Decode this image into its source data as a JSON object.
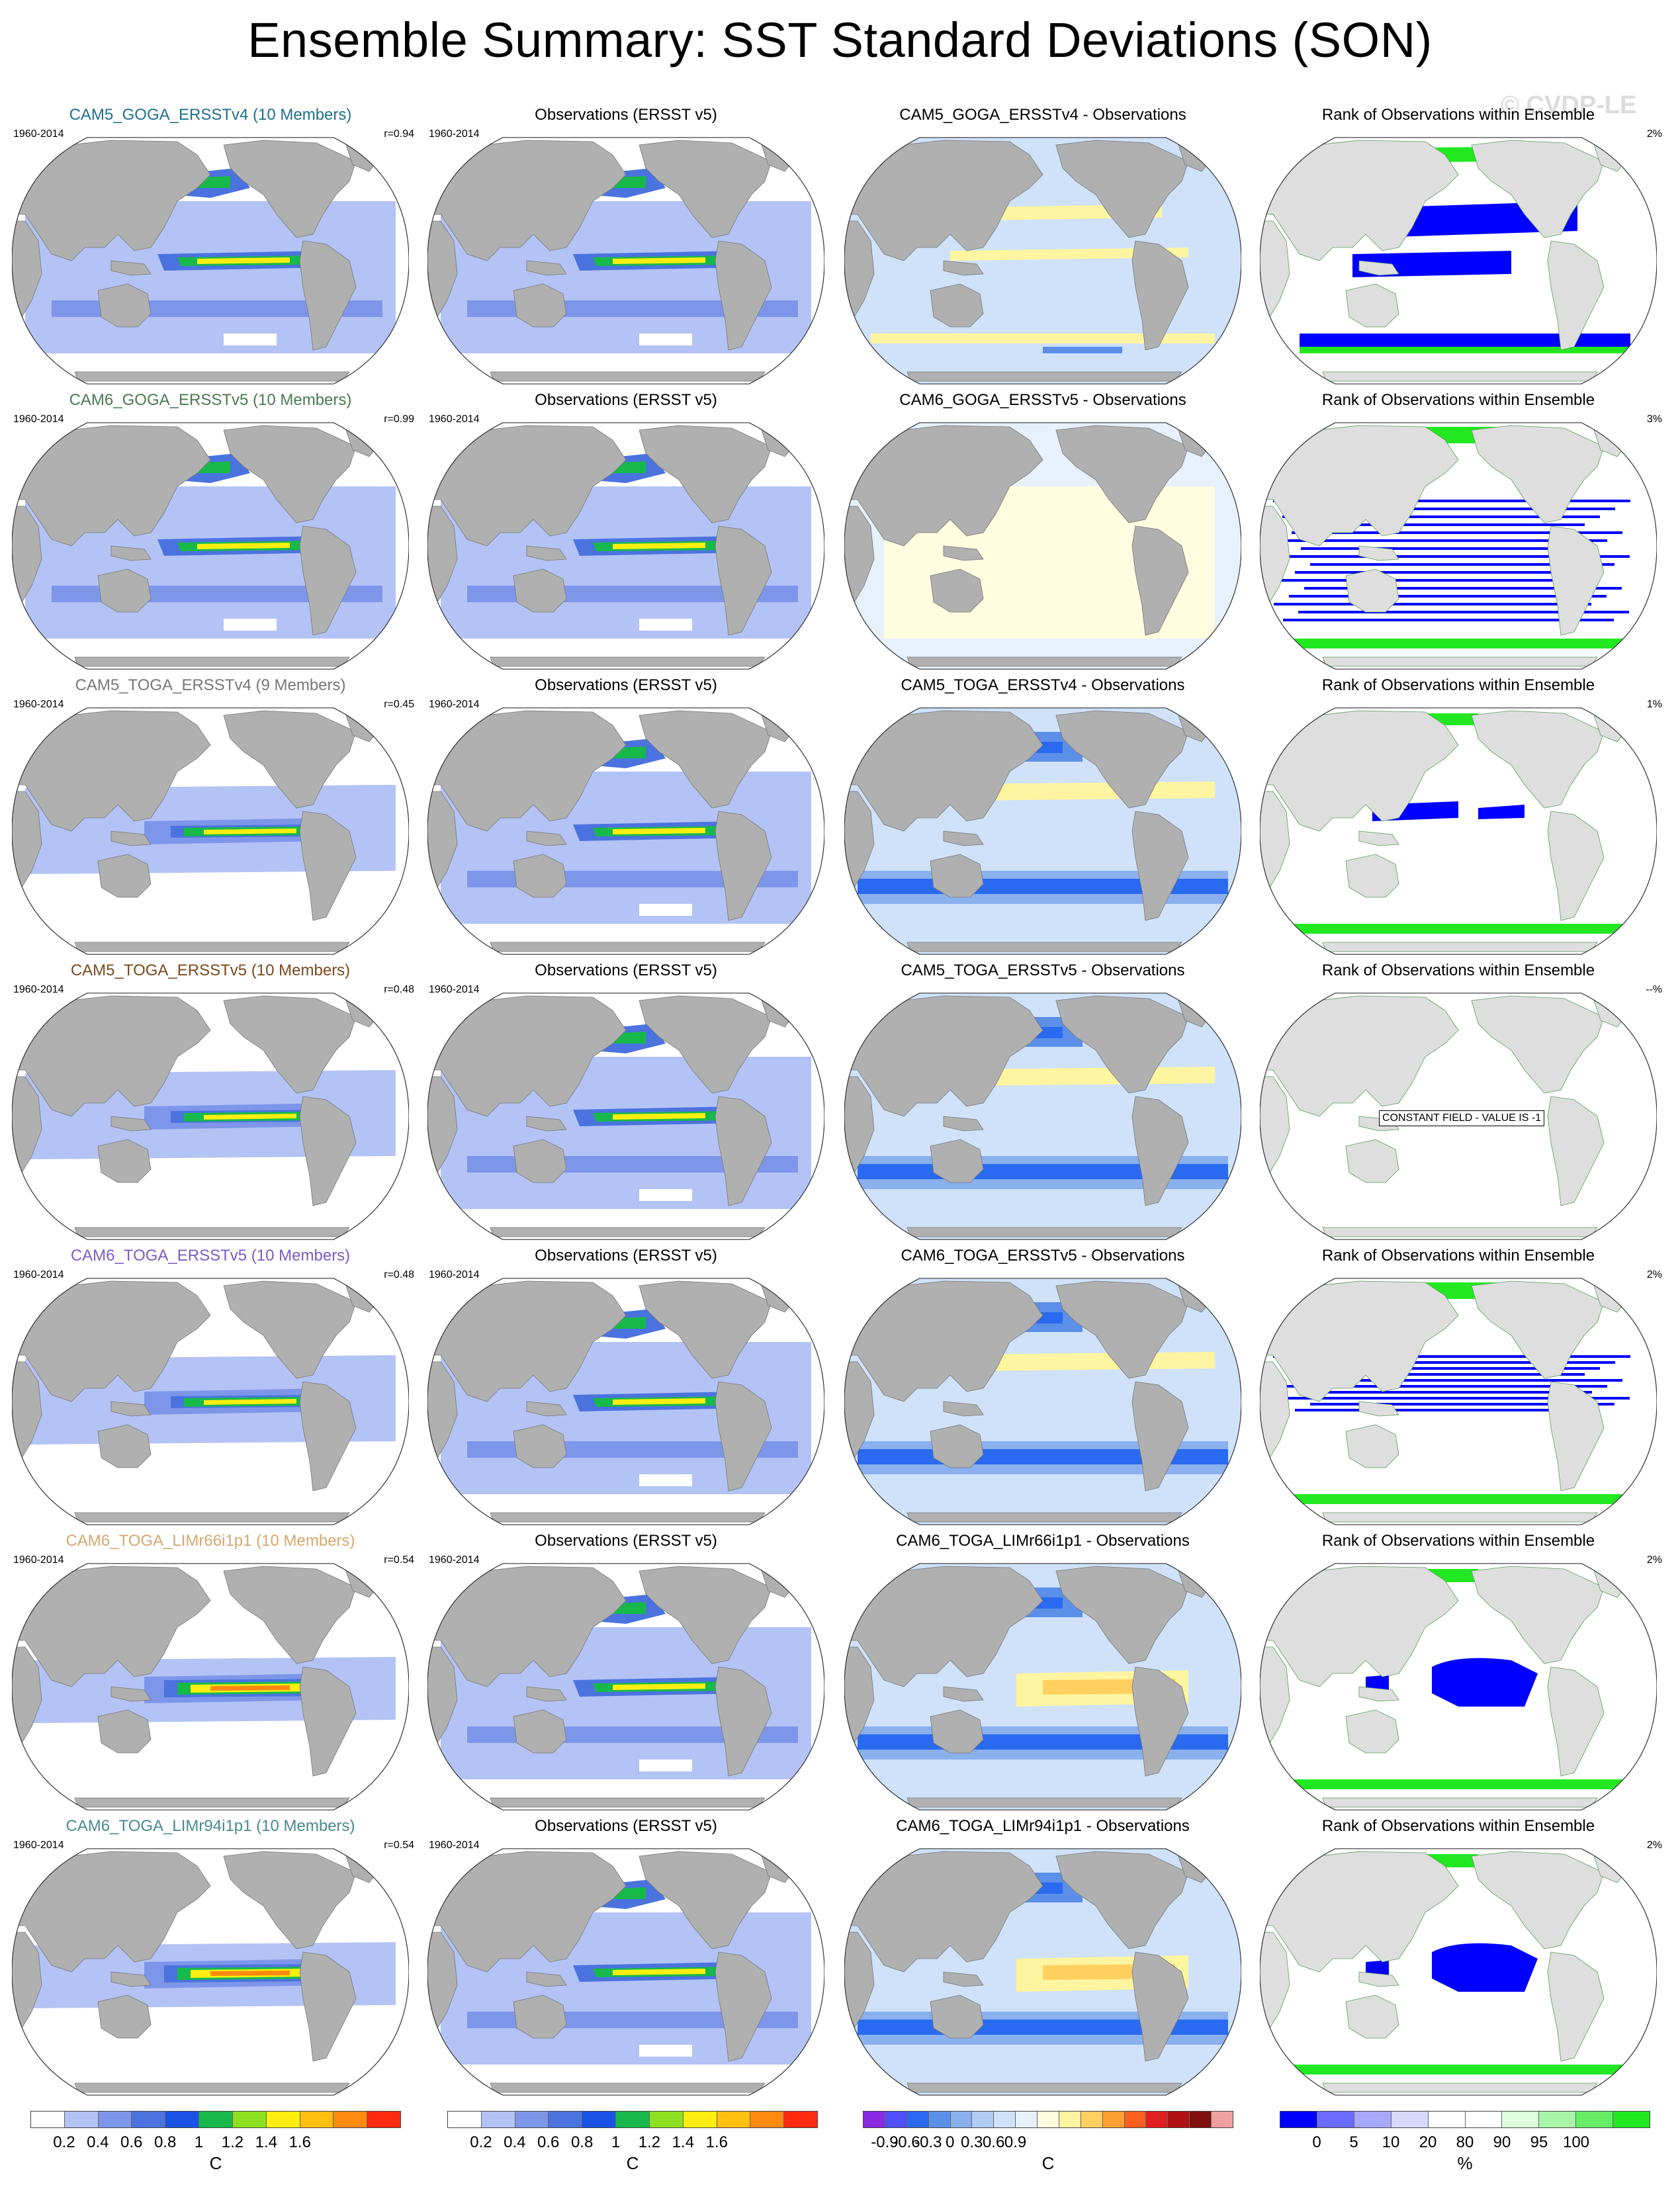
{
  "title": "Ensemble Summary: SST Standard Deviations (SON)",
  "watermark": "© CVDP-LE",
  "rows": [
    {
      "model": "CAM5_GOGA_ERSSTv4 (10 Members)",
      "model_color": "#1f6f8b",
      "period": "1960-2014",
      "r": "r=0.94",
      "obs": "Observations (ERSST v5)",
      "diff": "CAM5_GOGA_ERSSTv4 - Observations",
      "rank": "Rank of Observations within Ensemble",
      "rank_pct": "2%",
      "style": "full",
      "diff_style": "mixed",
      "rank_style": "bands"
    },
    {
      "model": "CAM6_GOGA_ERSSTv5 (10 Members)",
      "model_color": "#4a7a52",
      "period": "1960-2014",
      "r": "r=0.99",
      "obs": "Observations (ERSST v5)",
      "diff": "CAM6_GOGA_ERSSTv5 - Observations",
      "rank": "Rank of Observations within Ensemble",
      "rank_pct": "3%",
      "style": "full",
      "diff_style": "near-zero",
      "rank_style": "striped"
    },
    {
      "model": "CAM5_TOGA_ERSSTv4 (9 Members)",
      "model_color": "#777777",
      "period": "1960-2014",
      "r": "r=0.45",
      "obs": "Observations (ERSST v5)",
      "diff": "CAM5_TOGA_ERSSTv4 - Observations",
      "rank": "Rank of Observations within Ensemble",
      "rank_pct": "1%",
      "style": "toga",
      "diff_style": "negative",
      "rank_style": "patches"
    },
    {
      "model": "CAM5_TOGA_ERSSTv5 (10 Members)",
      "model_color": "#7a4a1e",
      "period": "1960-2014",
      "r": "r=0.48",
      "obs": "Observations (ERSST v5)",
      "diff": "CAM5_TOGA_ERSSTv5 - Observations",
      "rank": "Rank of Observations within Ensemble",
      "rank_pct": "--%",
      "style": "toga",
      "diff_style": "negative",
      "rank_style": "constant",
      "rank_note": "CONSTANT FIELD - VALUE IS -1"
    },
    {
      "model": "CAM6_TOGA_ERSSTv5 (10 Members)",
      "model_color": "#7b5cc4",
      "period": "1960-2014",
      "r": "r=0.48",
      "obs": "Observations (ERSST v5)",
      "diff": "CAM6_TOGA_ERSSTv5 - Observations",
      "rank": "Rank of Observations within Ensemble",
      "rank_pct": "2%",
      "style": "toga",
      "diff_style": "negative",
      "rank_style": "striped-sparse"
    },
    {
      "model": "CAM6_TOGA_LIMr66i1p1 (10 Members)",
      "model_color": "#d4a870",
      "period": "1960-2014",
      "r": "r=0.54",
      "obs": "Observations (ERSST v5)",
      "diff": "CAM6_TOGA_LIMr66i1p1 - Observations",
      "rank": "Rank of Observations within Ensemble",
      "rank_pct": "2%",
      "style": "toga-strong",
      "diff_style": "negative-yellow",
      "rank_style": "blob"
    },
    {
      "model": "CAM6_TOGA_LIMr94i1p1 (10 Members)",
      "model_color": "#4a8a8a",
      "period": "1960-2014",
      "r": "r=0.54",
      "obs": "Observations (ERSST v5)",
      "diff": "CAM6_TOGA_LIMr94i1p1 - Observations",
      "rank": "Rank of Observations within Ensemble",
      "rank_pct": "2%",
      "style": "toga-strong",
      "diff_style": "negative-yellow",
      "rank_style": "blob"
    }
  ],
  "legends": {
    "sd": {
      "ticks": [
        "0.2",
        "0.4",
        "0.6",
        "0.8",
        "1",
        "1.2",
        "1.4",
        "1.6"
      ],
      "unit": "C",
      "colors": [
        "#ffffff",
        "#b4c3f5",
        "#7e96ea",
        "#4b73e0",
        "#1a52e6",
        "#17b94a",
        "#8ce01f",
        "#ffee10",
        "#ffc010",
        "#ff8a10",
        "#ff2a10"
      ]
    },
    "diff": {
      "ticks": [
        "-0.9",
        "-0.6",
        "-0.3",
        "0",
        "0.3",
        "0.6",
        "0.9"
      ],
      "unit": "C",
      "colors": [
        "#8a2be2",
        "#5050ff",
        "#2a6af0",
        "#5b8fe8",
        "#8ab0ee",
        "#b0ccf4",
        "#cfe2fa",
        "#e6f1fb",
        "#fffde0",
        "#fff5a0",
        "#ffd060",
        "#ffa030",
        "#ff6020",
        "#e02020",
        "#b01010",
        "#801010",
        "#f0a0a0"
      ]
    },
    "rank": {
      "ticks": [
        "0",
        "5",
        "10",
        "20",
        "80",
        "90",
        "95",
        "100"
      ],
      "unit": "%",
      "colors": [
        "#0000ff",
        "#6b6bff",
        "#a8a8ff",
        "#d8d8ff",
        "#ffffff",
        "#ffffff",
        "#dfffdf",
        "#a8f5a8",
        "#66ef66",
        "#22e822"
      ]
    }
  }
}
